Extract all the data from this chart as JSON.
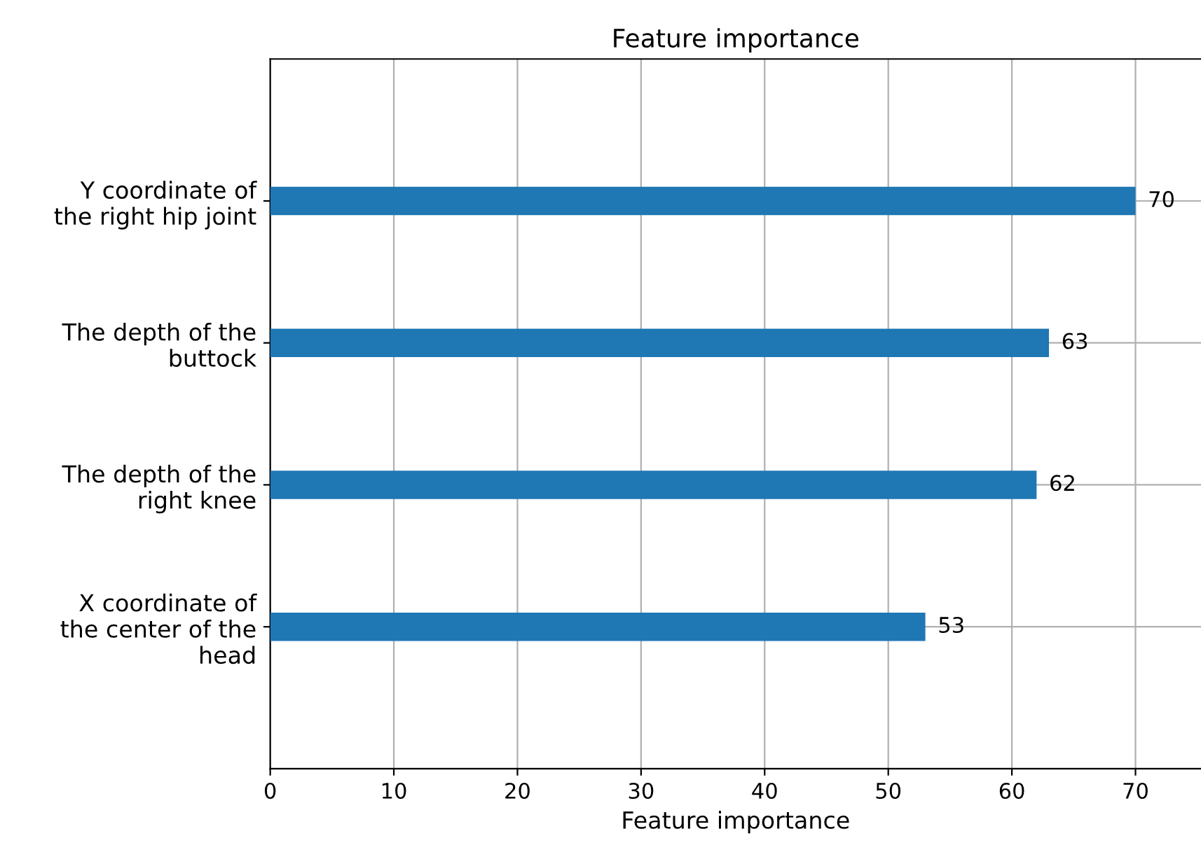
{
  "chart_data": {
    "type": "bar",
    "orientation": "horizontal",
    "title": "Feature importance",
    "xlabel": "Feature importance",
    "categories": [
      "Y coordinate of\nthe right hip joint",
      "The depth of the\nbuttock",
      "The depth of the\nright knee",
      "X coordinate of\nthe center of the\nhead"
    ],
    "values": [
      70,
      63,
      62,
      53
    ],
    "color": "#1f77b4",
    "xlim": [
      0,
      75.3
    ],
    "xticks": [
      0,
      10,
      20,
      30,
      40,
      50,
      60,
      70
    ],
    "grid": true,
    "data_labels": true
  }
}
